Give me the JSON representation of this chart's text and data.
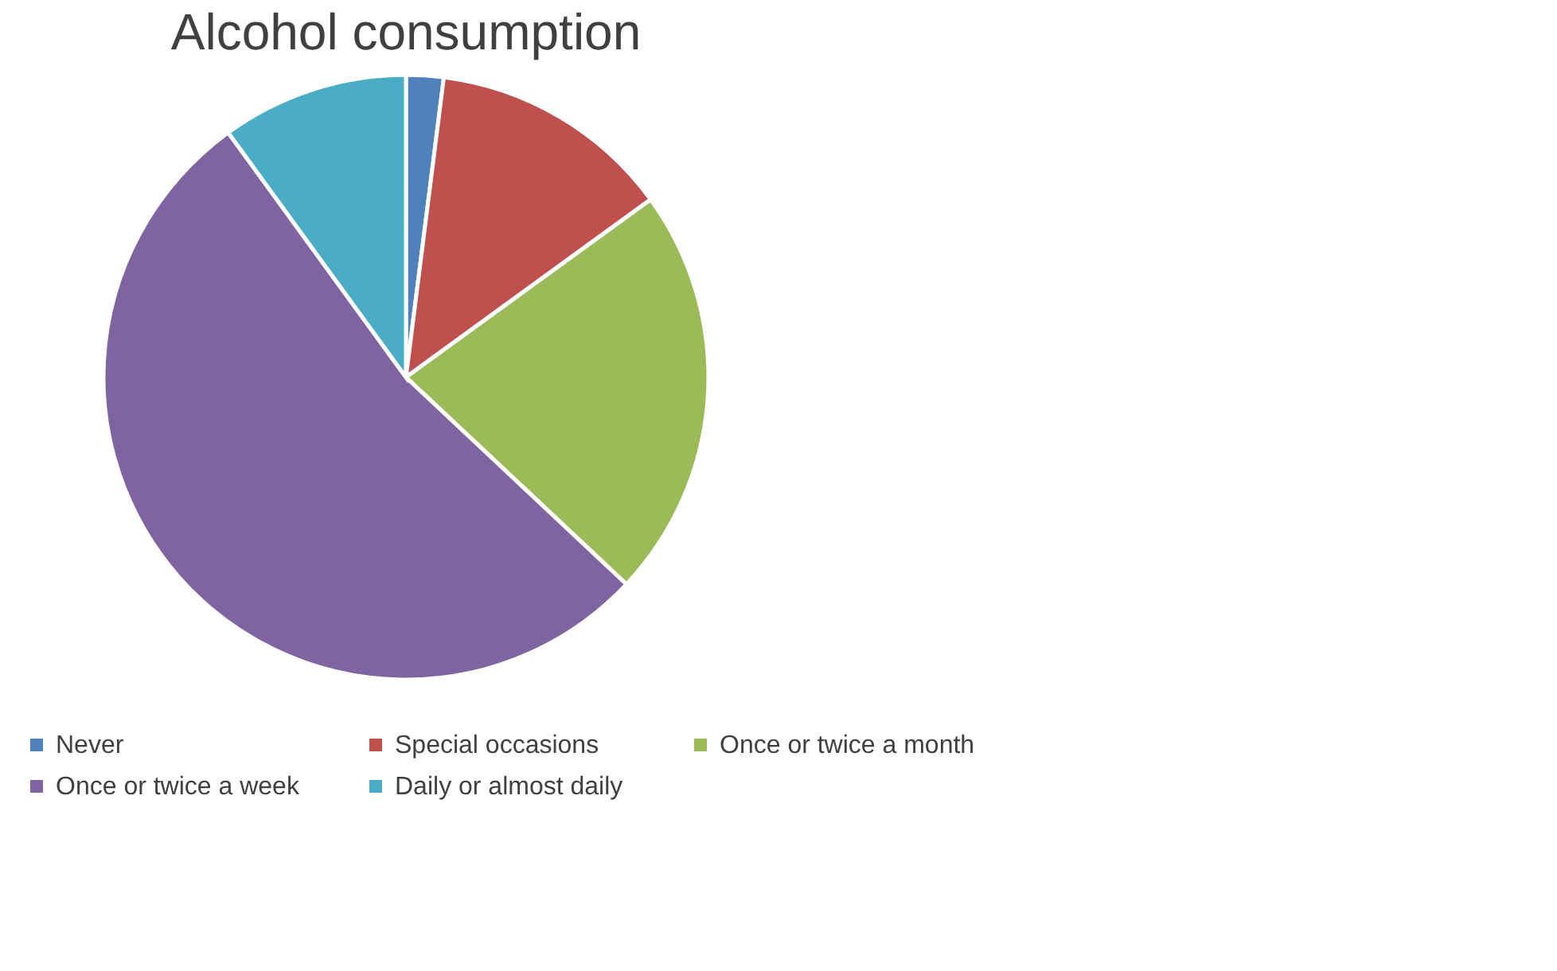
{
  "chart_data": {
    "type": "pie",
    "title": "Alcohol consumption",
    "categories": [
      "Never",
      "Special occasions",
      "Once or twice a month",
      "Once or twice a week",
      "Daily or almost daily"
    ],
    "values": [
      2,
      13,
      22,
      53,
      10
    ],
    "colors": [
      "#4f81bd",
      "#c0504d",
      "#9bbb59",
      "#8064a2",
      "#4bacc6"
    ],
    "legend": "bottom"
  }
}
